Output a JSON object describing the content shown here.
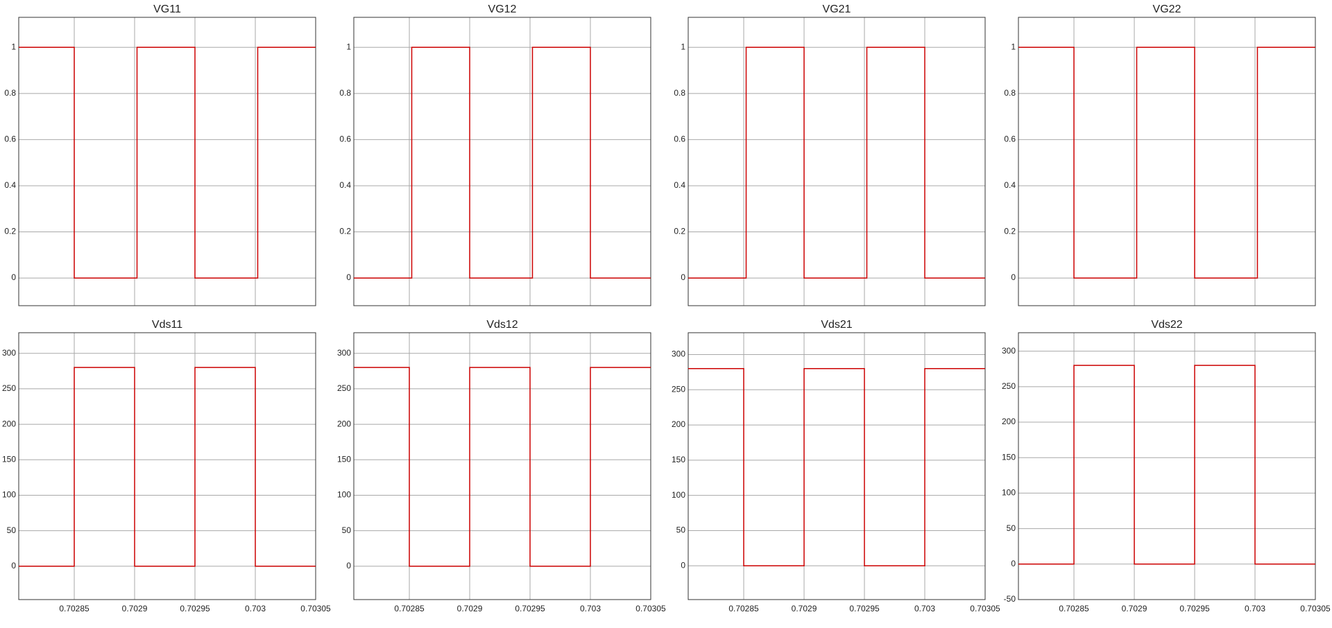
{
  "chart_data": [
    {
      "type": "line",
      "title": "VG11",
      "color": "#cc0000",
      "grid": true,
      "show_xtick_labels": false,
      "x": [
        0.702804,
        0.70285,
        0.70285,
        0.702902,
        0.702902,
        0.70295,
        0.70295,
        0.703002,
        0.703002,
        0.70305
      ],
      "values": [
        1,
        1,
        0,
        0,
        1,
        1,
        0,
        0,
        1,
        1
      ],
      "xlim": [
        0.702804,
        0.70305
      ],
      "xticks": [
        0.70285,
        0.7029,
        0.70295,
        0.703,
        0.70305
      ],
      "ylim": [
        -0.12,
        1.13
      ],
      "yticks": [
        0,
        0.2,
        0.4,
        0.6,
        0.8,
        1
      ]
    },
    {
      "type": "line",
      "title": "VG12",
      "color": "#cc0000",
      "grid": true,
      "show_xtick_labels": false,
      "x": [
        0.702804,
        0.702852,
        0.702852,
        0.7029,
        0.7029,
        0.702952,
        0.702952,
        0.703,
        0.703,
        0.70305
      ],
      "values": [
        0,
        0,
        1,
        1,
        0,
        0,
        1,
        1,
        0,
        0
      ],
      "xlim": [
        0.702804,
        0.70305
      ],
      "xticks": [
        0.70285,
        0.7029,
        0.70295,
        0.703,
        0.70305
      ],
      "ylim": [
        -0.12,
        1.13
      ],
      "yticks": [
        0,
        0.2,
        0.4,
        0.6,
        0.8,
        1
      ]
    },
    {
      "type": "line",
      "title": "VG21",
      "color": "#cc0000",
      "grid": true,
      "show_xtick_labels": false,
      "x": [
        0.702804,
        0.702852,
        0.702852,
        0.7029,
        0.7029,
        0.702952,
        0.702952,
        0.703,
        0.703,
        0.70305
      ],
      "values": [
        0,
        0,
        1,
        1,
        0,
        0,
        1,
        1,
        0,
        0
      ],
      "xlim": [
        0.702804,
        0.70305
      ],
      "xticks": [
        0.70285,
        0.7029,
        0.70295,
        0.703,
        0.70305
      ],
      "ylim": [
        -0.12,
        1.13
      ],
      "yticks": [
        0,
        0.2,
        0.4,
        0.6,
        0.8,
        1
      ]
    },
    {
      "type": "line",
      "title": "VG22",
      "color": "#cc0000",
      "grid": true,
      "show_xtick_labels": false,
      "x": [
        0.702804,
        0.70285,
        0.70285,
        0.702902,
        0.702902,
        0.70295,
        0.70295,
        0.703002,
        0.703002,
        0.70305
      ],
      "values": [
        1,
        1,
        0,
        0,
        1,
        1,
        0,
        0,
        1,
        1
      ],
      "xlim": [
        0.702804,
        0.70305
      ],
      "xticks": [
        0.70285,
        0.7029,
        0.70295,
        0.703,
        0.70305
      ],
      "ylim": [
        -0.12,
        1.13
      ],
      "yticks": [
        0,
        0.2,
        0.4,
        0.6,
        0.8,
        1
      ]
    },
    {
      "type": "line",
      "title": "Vds11",
      "color": "#cc0000",
      "grid": true,
      "show_xtick_labels": true,
      "x": [
        0.702804,
        0.70285,
        0.70285,
        0.7029,
        0.7029,
        0.70295,
        0.70295,
        0.703,
        0.703,
        0.70305
      ],
      "values": [
        0,
        0,
        280,
        280,
        0,
        0,
        280,
        280,
        0,
        0
      ],
      "xlim": [
        0.702804,
        0.70305
      ],
      "xticks": [
        0.70285,
        0.7029,
        0.70295,
        0.703,
        0.70305
      ],
      "ylim": [
        -47,
        329
      ],
      "yticks": [
        0,
        50,
        100,
        150,
        200,
        250,
        300
      ]
    },
    {
      "type": "line",
      "title": "Vds12",
      "color": "#cc0000",
      "grid": true,
      "show_xtick_labels": true,
      "x": [
        0.702804,
        0.70285,
        0.70285,
        0.7029,
        0.7029,
        0.70295,
        0.70295,
        0.703,
        0.703,
        0.70305
      ],
      "values": [
        280,
        280,
        0,
        0,
        280,
        280,
        0,
        0,
        280,
        280
      ],
      "xlim": [
        0.702804,
        0.70305
      ],
      "xticks": [
        0.70285,
        0.7029,
        0.70295,
        0.703,
        0.70305
      ],
      "ylim": [
        -47,
        329
      ],
      "yticks": [
        0,
        50,
        100,
        150,
        200,
        250,
        300
      ]
    },
    {
      "type": "line",
      "title": "Vds21",
      "color": "#cc0000",
      "grid": true,
      "show_xtick_labels": true,
      "x": [
        0.702804,
        0.70285,
        0.70285,
        0.7029,
        0.7029,
        0.70295,
        0.70295,
        0.703,
        0.703,
        0.70305
      ],
      "values": [
        280,
        280,
        0,
        0,
        280,
        280,
        0,
        0,
        280,
        280
      ],
      "xlim": [
        0.702804,
        0.70305
      ],
      "xticks": [
        0.70285,
        0.7029,
        0.70295,
        0.703,
        0.70305
      ],
      "ylim": [
        -48,
        331
      ],
      "yticks": [
        0,
        50,
        100,
        150,
        200,
        250,
        300
      ]
    },
    {
      "type": "line",
      "title": "Vds22",
      "color": "#cc0000",
      "grid": true,
      "show_xtick_labels": true,
      "x": [
        0.702804,
        0.70285,
        0.70285,
        0.7029,
        0.7029,
        0.70295,
        0.70295,
        0.703,
        0.703,
        0.70305
      ],
      "values": [
        0,
        0,
        280,
        280,
        0,
        0,
        280,
        280,
        0,
        0
      ],
      "xlim": [
        0.702804,
        0.70305
      ],
      "xticks": [
        0.70285,
        0.7029,
        0.70295,
        0.703,
        0.70305
      ],
      "ylim": [
        -50,
        326
      ],
      "yticks": [
        -50,
        0,
        50,
        100,
        150,
        200,
        250,
        300
      ]
    }
  ]
}
